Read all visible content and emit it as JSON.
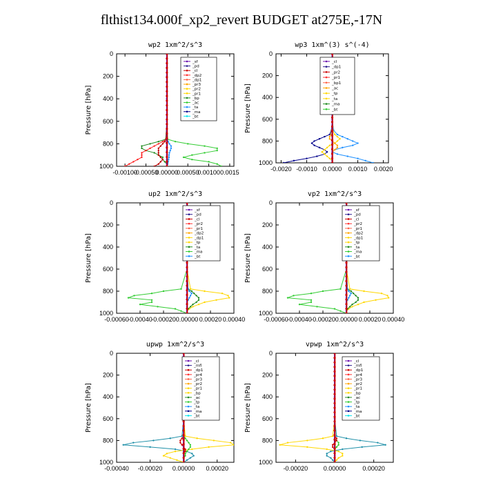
{
  "title": "flthist134.000f_xp2_revert  BUDGET at275E,-17N",
  "chart_data": [
    {
      "type": "line",
      "title": "wp2  1xm^2/s^3",
      "ylabel": "Pressure [hPa]",
      "ylim": [
        0,
        1000
      ],
      "y_inverted": true,
      "xlim": [
        -0.0012,
        0.0016
      ],
      "xticks": [
        -0.001,
        -0.0005,
        0.0,
        0.0005,
        0.001,
        0.0015
      ],
      "xtick_labels": [
        "-0.00100",
        "-0.00050",
        "0.00000",
        "0.00050",
        "0.00100",
        "0.0015"
      ],
      "yticks": [
        0,
        200,
        400,
        600,
        800,
        1000
      ],
      "legend": [
        "_sf",
        "_pd",
        "_cl",
        "_dp2",
        "_dp1",
        "_pr3",
        "_pr2",
        "_pr1",
        "_bp",
        "_ac",
        "_ta",
        "_ma",
        "_bt"
      ],
      "y": [
        0,
        200,
        400,
        600,
        760,
        780,
        800,
        820,
        840,
        860,
        880,
        900,
        920,
        940,
        960,
        980,
        1000
      ],
      "series": [
        {
          "name": "_ac",
          "color": "#33cc33",
          "values": [
            0,
            0,
            0,
            0,
            2e-05,
            0.0002,
            0.0005,
            0.0009,
            0.0012,
            0.0012,
            0.0009,
            0.0006,
            0.0004,
            0.0006,
            0.001,
            0.0012,
            0.0013
          ]
        },
        {
          "name": "_bp",
          "color": "#228b22",
          "values": [
            0,
            0,
            0,
            0,
            -3e-05,
            -0.0002,
            -0.0004,
            -0.0006,
            -0.0006,
            -0.0005,
            -0.0003,
            -0.0002,
            -0.0001,
            -0.0001,
            -5e-05,
            0,
            0
          ]
        },
        {
          "name": "_pr1",
          "color": "#ff2222",
          "values": [
            0,
            0,
            0,
            0,
            -2e-05,
            -0.0001,
            -0.0002,
            -0.0003,
            -0.0004,
            -0.0005,
            -0.0006,
            -0.0006,
            -0.0006,
            -0.0007,
            -0.0008,
            -0.0009,
            -0.001
          ]
        },
        {
          "name": "_cl",
          "color": "#bb0000",
          "values": [
            0,
            0,
            0,
            0,
            -1e-05,
            -5e-05,
            -0.0001,
            -0.00015,
            -0.0002,
            -0.0002,
            -0.0002,
            -0.0002,
            -0.00015,
            -0.0001,
            -0.00015,
            -0.0002,
            -0.0003
          ]
        },
        {
          "name": "_ta",
          "color": "#1e90ff",
          "values": [
            0,
            0,
            0,
            0,
            1e-05,
            3e-05,
            6e-05,
            0.0001,
            0.0001,
            8e-05,
            6e-05,
            5e-05,
            5e-05,
            4e-05,
            3e-05,
            2e-05,
            0
          ]
        },
        {
          "name": "_bt",
          "color": "#00e5ee",
          "values": [
            0,
            0,
            0,
            0,
            0,
            0,
            0,
            0,
            0,
            0,
            0,
            0,
            0,
            0,
            0,
            0,
            0
          ]
        },
        {
          "name": "_sf",
          "color": "#6a0dad",
          "values": [
            0,
            0,
            0,
            0,
            0,
            0,
            0,
            0,
            0,
            0,
            0,
            0,
            0,
            0,
            0,
            0,
            0
          ]
        }
      ]
    },
    {
      "type": "line",
      "title": "wp3  1xm^(3) s^(-4)",
      "ylabel": "Pressure [hPa]",
      "ylim": [
        0,
        1000
      ],
      "y_inverted": true,
      "xlim": [
        -0.0022,
        0.0022
      ],
      "xticks": [
        -0.002,
        -0.001,
        0.0,
        0.001,
        0.002
      ],
      "xtick_labels": [
        "-0.0020",
        "-0.0010",
        "0.0000",
        "0.0010",
        "0.0020"
      ],
      "yticks": [
        0,
        200,
        400,
        600,
        800,
        1000
      ],
      "legend": [
        "_cl",
        "_dp1",
        "_pr2",
        "_pr1",
        "_bp1",
        "_ac",
        "_tp",
        "_ta",
        "_ma",
        "_bt"
      ],
      "y": [
        0,
        200,
        400,
        600,
        700,
        740,
        760,
        780,
        800,
        820,
        840,
        860,
        880,
        900,
        920,
        940,
        960,
        980,
        1000
      ],
      "series": [
        {
          "name": "_ta",
          "color": "#1e90ff",
          "values": [
            0,
            0,
            0,
            0,
            5e-05,
            0.0002,
            0.0004,
            0.0006,
            0.0008,
            0.001,
            0.0008,
            0.0004,
            0.0001,
            0,
            0.0002,
            0.0006,
            0.001,
            0.0013,
            0.0016
          ]
        },
        {
          "name": "_ma",
          "color": "#00008b",
          "values": [
            0,
            0,
            0,
            0,
            -3e-05,
            -0.0001,
            -0.0003,
            -0.0005,
            -0.0007,
            -0.0008,
            -0.0007,
            -0.0005,
            -0.0003,
            -0.0002,
            -0.0003,
            -0.0006,
            -0.001,
            -0.0015,
            -0.0019
          ]
        },
        {
          "name": "_pr1",
          "color": "#ffd700",
          "values": [
            0,
            0,
            0,
            0,
            2e-05,
            0.0001,
            0.0002,
            0.0003,
            0.0002,
            0.0001,
            -0.0001,
            -0.0002,
            -0.0003,
            -0.0004,
            -0.0003,
            -0.0002,
            -0.0001,
            0,
            0
          ]
        },
        {
          "name": "_pr2",
          "color": "#ffa500",
          "values": [
            0,
            0,
            0,
            0,
            -2e-05,
            -5e-05,
            -0.0001,
            -0.0001,
            0,
            0.0001,
            0.0002,
            0.0002,
            0.0001,
            0,
            0,
            0,
            0,
            0,
            0
          ]
        },
        {
          "name": "_cl",
          "color": "#cc0000",
          "values": [
            0,
            0,
            0,
            0,
            0,
            0,
            0,
            0,
            0,
            0,
            0,
            0,
            0,
            0,
            0,
            0,
            0,
            0,
            0
          ]
        }
      ]
    },
    {
      "type": "line",
      "title": "up2  1xm^2/s^3",
      "ylabel": "Pressure [hPa]",
      "ylim": [
        0,
        1000
      ],
      "y_inverted": true,
      "xlim": [
        -0.0006,
        0.0004
      ],
      "xticks": [
        -0.0006,
        -0.0004,
        -0.0002,
        0.0,
        0.0002,
        0.0004
      ],
      "xtick_labels": [
        "-0.00060",
        "-0.00040",
        "-0.00020",
        "0.00000",
        "0.00020",
        "0.00040"
      ],
      "yticks": [
        0,
        200,
        400,
        600,
        800,
        1000
      ],
      "legend": [
        "_sf",
        "_pd",
        "_cl",
        "_pr2",
        "_pr1",
        "_dp2",
        "_dp1",
        "_tp",
        "_ta",
        "_ma",
        "_bt"
      ],
      "y": [
        0,
        200,
        400,
        600,
        780,
        800,
        820,
        840,
        860,
        880,
        900,
        920,
        940,
        960,
        980,
        1000
      ],
      "series": [
        {
          "name": "_dp2",
          "color": "#33cc33",
          "values": [
            0,
            0,
            0,
            0,
            -5e-05,
            -0.0002,
            -0.0003,
            -0.00045,
            -0.0005,
            -0.0003,
            -0.0003,
            -0.0004,
            -0.00025,
            -0.0001,
            -5e-05,
            0
          ]
        },
        {
          "name": "_pr1",
          "color": "#ffd700",
          "values": [
            0,
            0,
            0,
            0,
            3e-05,
            0.00015,
            0.0003,
            0.00035,
            0.00036,
            0.00025,
            0.00015,
            0.0001,
            5e-05,
            2e-05,
            0,
            0
          ]
        },
        {
          "name": "_dp1",
          "color": "#228b22",
          "values": [
            0,
            0,
            0,
            0,
            1e-05,
            4e-05,
            6e-05,
            8e-05,
            0.0001,
            0.0001,
            8e-05,
            5e-05,
            3e-05,
            1e-05,
            0,
            0
          ]
        },
        {
          "name": "_tp",
          "color": "#1e90ff",
          "values": [
            0,
            0,
            0,
            0,
            1e-05,
            2e-05,
            4e-05,
            3e-05,
            2e-05,
            1e-05,
            0,
            0,
            0,
            0,
            0,
            0
          ]
        },
        {
          "name": "_cl",
          "color": "#cc0000",
          "values": [
            0,
            0,
            0,
            0,
            0,
            0,
            0,
            0,
            0,
            0,
            0,
            0,
            0,
            0,
            0,
            0
          ]
        }
      ]
    },
    {
      "type": "line",
      "title": "vp2  1xm^2/s^3",
      "ylabel": "Pressure [hPa]",
      "ylim": [
        0,
        1000
      ],
      "y_inverted": true,
      "xlim": [
        -0.0006,
        0.0004
      ],
      "xticks": [
        -0.0006,
        -0.0004,
        -0.0002,
        0.0,
        0.0002,
        0.0004
      ],
      "xtick_labels": [
        "-0.00060",
        "-0.00040",
        "-0.00020",
        "0.00000",
        "0.00020",
        "0.00040"
      ],
      "yticks": [
        0,
        200,
        400,
        600,
        800,
        1000
      ],
      "legend": [
        "_sf",
        "_pd",
        "_cl",
        "_pr2",
        "_pr1",
        "_dp2",
        "_dp1",
        "_tp",
        "_ta",
        "_ma",
        "_bt"
      ],
      "y": [
        0,
        200,
        400,
        600,
        780,
        800,
        820,
        840,
        860,
        880,
        900,
        920,
        940,
        960,
        980,
        1000
      ],
      "series": [
        {
          "name": "_dp2",
          "color": "#33cc33",
          "values": [
            0,
            0,
            0,
            0,
            -5e-05,
            -0.0002,
            -0.0003,
            -0.00045,
            -0.0005,
            -0.0003,
            -0.0003,
            -0.0004,
            -0.00025,
            -0.0001,
            -5e-05,
            0
          ]
        },
        {
          "name": "_pr1",
          "color": "#ffd700",
          "values": [
            0,
            0,
            0,
            0,
            3e-05,
            0.00015,
            0.0003,
            0.00035,
            0.00036,
            0.00025,
            0.00015,
            0.0001,
            5e-05,
            2e-05,
            0,
            0
          ]
        },
        {
          "name": "_dp1",
          "color": "#228b22",
          "values": [
            0,
            0,
            0,
            0,
            1e-05,
            4e-05,
            6e-05,
            8e-05,
            0.0001,
            0.0001,
            8e-05,
            5e-05,
            3e-05,
            1e-05,
            0,
            0
          ]
        },
        {
          "name": "_tp",
          "color": "#1e90ff",
          "values": [
            0,
            0,
            0,
            0,
            1e-05,
            2e-05,
            4e-05,
            3e-05,
            2e-05,
            1e-05,
            0,
            0,
            0,
            0,
            0,
            0
          ]
        },
        {
          "name": "_cl",
          "color": "#cc0000",
          "values": [
            0,
            0,
            0,
            0,
            0,
            0,
            0,
            0,
            0,
            0,
            0,
            0,
            0,
            0,
            0,
            0
          ]
        }
      ]
    },
    {
      "type": "line",
      "title": "upwp  1xm^2/s^3",
      "ylabel": "Pressure [hPa]",
      "ylim": [
        0,
        1000
      ],
      "y_inverted": true,
      "xlim": [
        -0.0004,
        0.0003
      ],
      "xticks": [
        -0.0004,
        -0.0002,
        0.0,
        0.0002
      ],
      "xtick_labels": [
        "-0.00040",
        "-0.00020",
        "0.00000",
        "0.00020"
      ],
      "yticks": [
        0,
        200,
        400,
        600,
        800,
        1000
      ],
      "legend": [
        "_cl",
        "_mfl",
        "_dp1",
        "_pr4",
        "_pr3",
        "_pr2",
        "_pr1",
        "_bp",
        "_ac",
        "_tp",
        "_ta",
        "_ma",
        "_bt"
      ],
      "y": [
        0,
        200,
        400,
        600,
        760,
        780,
        800,
        820,
        840,
        860,
        880,
        900,
        920,
        940,
        960,
        980,
        1000
      ],
      "series": [
        {
          "name": "_tp",
          "color": "#1e8fa8",
          "values": [
            0,
            0,
            0,
            0,
            -1e-05,
            -8e-05,
            -0.00018,
            -0.0003,
            -0.00036,
            -0.0002,
            -5e-05,
            2e-05,
            5e-05,
            6e-05,
            4e-05,
            2e-05,
            0
          ]
        },
        {
          "name": "_pr1",
          "color": "#ffd700",
          "values": [
            0,
            0,
            0,
            0,
            1e-05,
            8e-05,
            0.00018,
            0.00028,
            0.0003,
            0.00015,
            5e-05,
            -5e-05,
            -0.0001,
            -0.00012,
            -8e-05,
            -4e-05,
            0
          ]
        },
        {
          "name": "_ac",
          "color": "#33cc33",
          "values": [
            0,
            0,
            0,
            0,
            0,
            1e-05,
            2e-05,
            3e-05,
            4e-05,
            4e-05,
            3e-05,
            2e-05,
            1e-05,
            1e-05,
            0,
            0,
            0
          ]
        },
        {
          "name": "_dp1",
          "color": "#cc0000",
          "values": [
            0,
            0,
            0,
            0,
            0,
            -1e-05,
            -2e-05,
            -2e-05,
            -1e-05,
            0,
            1e-05,
            1e-05,
            0,
            0,
            0,
            0,
            0
          ]
        },
        {
          "name": "_cl",
          "color": "#8a2be2",
          "values": [
            0,
            0,
            0,
            0,
            0,
            0,
            0,
            0,
            0,
            0,
            0,
            0,
            0,
            0,
            0,
            0,
            0
          ]
        }
      ]
    },
    {
      "type": "line",
      "title": "vpwp  1xm^2/s^3",
      "ylabel": "Pressure [hPa]",
      "ylim": [
        0,
        1000
      ],
      "y_inverted": true,
      "xlim": [
        -0.0003,
        0.0003
      ],
      "xticks": [
        -0.0002,
        0.0,
        0.0002
      ],
      "xtick_labels": [
        "-0.00020",
        "0.00000",
        "0.00020"
      ],
      "yticks": [
        0,
        200,
        400,
        600,
        800,
        1000
      ],
      "legend": [
        "_cl",
        "_mfl",
        "_dp1",
        "_pr4",
        "_pr3",
        "_pr2",
        "_pr1",
        "_bp",
        "_ac",
        "_tp",
        "_ta",
        "_ma",
        "_bt"
      ],
      "y": [
        0,
        200,
        400,
        600,
        760,
        780,
        800,
        820,
        840,
        860,
        880,
        900,
        920,
        940,
        960,
        980,
        1000
      ],
      "series": [
        {
          "name": "_tp",
          "color": "#1e8fa8",
          "values": [
            0,
            0,
            0,
            0,
            1e-05,
            6e-05,
            0.00013,
            0.00022,
            0.00026,
            0.00014,
            4e-05,
            -2e-05,
            -4e-05,
            -4e-05,
            -2e-05,
            -1e-05,
            0
          ]
        },
        {
          "name": "_pr1",
          "color": "#ffd700",
          "values": [
            0,
            0,
            0,
            0,
            -1e-05,
            -6e-05,
            -0.00014,
            -0.00024,
            -0.00028,
            -0.00014,
            -4e-05,
            2e-05,
            4e-05,
            4e-05,
            2e-05,
            1e-05,
            0
          ]
        },
        {
          "name": "_ac",
          "color": "#33cc33",
          "values": [
            0,
            0,
            0,
            0,
            0,
            0,
            1e-05,
            2e-05,
            2e-05,
            1e-05,
            0,
            0,
            0,
            0,
            0,
            0,
            0
          ]
        },
        {
          "name": "_dp1",
          "color": "#cc0000",
          "values": [
            0,
            0,
            0,
            0,
            0,
            1e-05,
            1e-05,
            0,
            -1e-05,
            -1e-05,
            0,
            0,
            0,
            0,
            0,
            0,
            0
          ]
        },
        {
          "name": "_cl",
          "color": "#8a2be2",
          "values": [
            0,
            0,
            0,
            0,
            0,
            0,
            0,
            0,
            0,
            0,
            0,
            0,
            0,
            0,
            0,
            0,
            0
          ]
        }
      ]
    }
  ]
}
